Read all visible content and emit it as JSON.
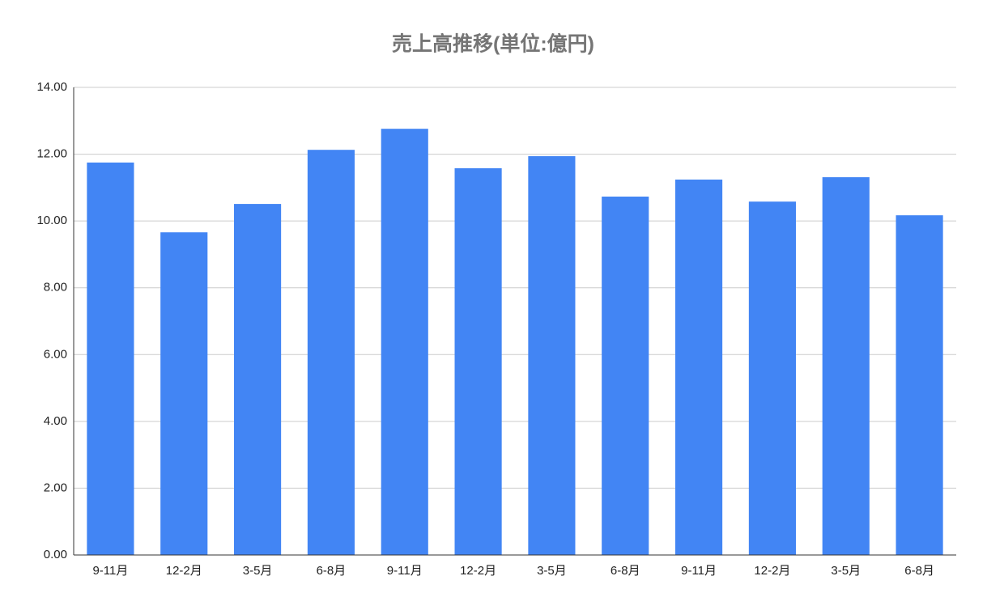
{
  "chart_data": {
    "type": "bar",
    "title": "売上高推移(単位:億円)",
    "categories": [
      "9-11月",
      "12-2月",
      "3-5月",
      "6-8月",
      "9-11月",
      "12-2月",
      "3-5月",
      "6-8月",
      "9-11月",
      "12-2月",
      "3-5月",
      "6-8月"
    ],
    "values": [
      11.75,
      9.66,
      10.51,
      12.13,
      12.76,
      11.58,
      11.94,
      10.73,
      11.24,
      10.58,
      11.31,
      10.17
    ],
    "color": "#4285f4",
    "ylim": [
      0,
      14
    ],
    "yticks": [
      {
        "value": 0,
        "label": "0.00"
      },
      {
        "value": 2,
        "label": "2.00"
      },
      {
        "value": 4,
        "label": "4.00"
      },
      {
        "value": 6,
        "label": "6.00"
      },
      {
        "value": 8,
        "label": "8.00"
      },
      {
        "value": 10,
        "label": "10.00"
      },
      {
        "value": 12,
        "label": "12.00"
      },
      {
        "value": 14,
        "label": "14.00"
      }
    ],
    "grid": true
  }
}
